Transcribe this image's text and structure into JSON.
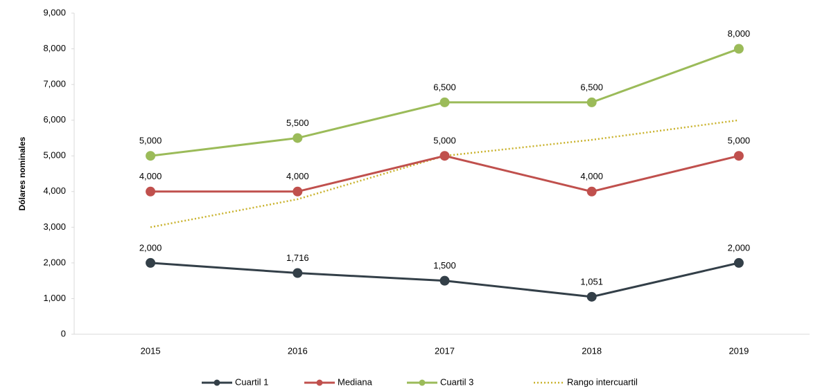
{
  "chart_data": {
    "type": "line",
    "y_label": "Dólares nominales",
    "categories": [
      "2015",
      "2016",
      "2017",
      "2018",
      "2019"
    ],
    "series": [
      {
        "name": "Cuartil 1",
        "color": "#333f48",
        "marker": true,
        "values": [
          2000,
          1716,
          1500,
          1051,
          2000
        ],
        "value_labels": [
          "2,000",
          "1,716",
          "1,500",
          "1,051",
          "2,000"
        ]
      },
      {
        "name": "Mediana",
        "color": "#c0504d",
        "marker": true,
        "values": [
          4000,
          4000,
          5000,
          4000,
          5000
        ],
        "value_labels": [
          "4,000",
          "4,000",
          "5,000",
          "4,000",
          "5,000"
        ]
      },
      {
        "name": "Cuartil 3",
        "color": "#9bbb59",
        "marker": true,
        "values": [
          5000,
          5500,
          6500,
          6500,
          8000
        ],
        "value_labels": [
          "5,000",
          "5,500",
          "6,500",
          "6,500",
          "8,000"
        ]
      },
      {
        "name": "Rango intercuartil",
        "color": "#c9b22c",
        "dotted": true,
        "marker": false,
        "values": [
          3000,
          3784,
          5000,
          5449,
          6000
        ]
      }
    ],
    "ylim": [
      0,
      9000
    ],
    "yticks": [
      0,
      {
        "value": 1000,
        "label": "1,000"
      },
      {
        "value": 2000,
        "label": "2,000"
      },
      {
        "value": 3000,
        "label": "3,000"
      },
      {
        "value": 4000,
        "label": "4,000"
      },
      {
        "value": 5000,
        "label": "5,000"
      },
      {
        "value": 6000,
        "label": "6,000"
      },
      {
        "value": 7000,
        "label": "7,000"
      },
      {
        "value": 8000,
        "label": "8,000"
      },
      {
        "value": 9000,
        "label": "9,000"
      }
    ],
    "grid": false,
    "legend": "bottom"
  }
}
